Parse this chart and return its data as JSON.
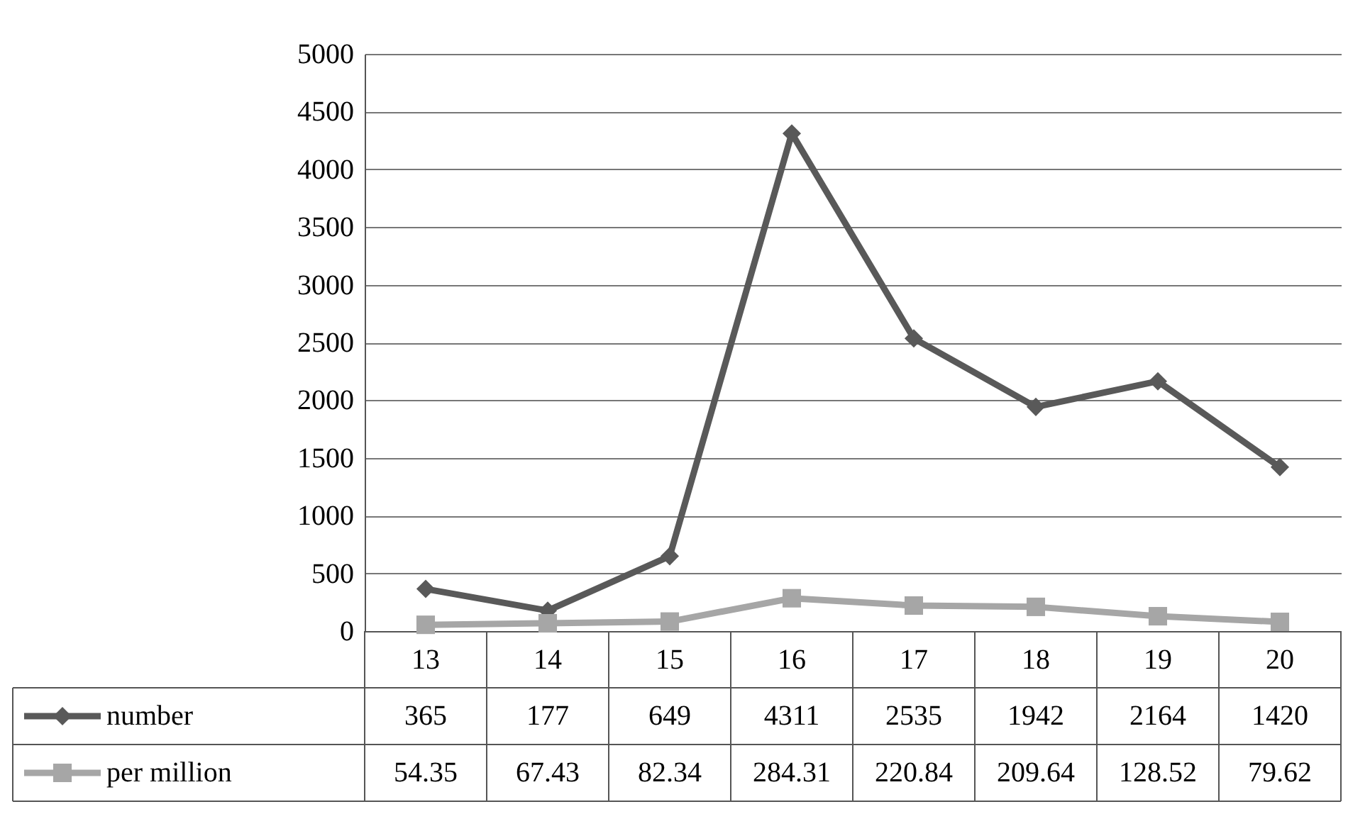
{
  "chart_data": {
    "type": "line",
    "categories": [
      "13",
      "14",
      "15",
      "16",
      "17",
      "18",
      "19",
      "20"
    ],
    "series": [
      {
        "name": "number",
        "color": "#595959",
        "marker": "diamond",
        "values": [
          365,
          177,
          649,
          4311,
          2535,
          1942,
          2164,
          1420
        ]
      },
      {
        "name": "per million",
        "color": "#a6a6a6",
        "marker": "square",
        "values": [
          54.35,
          67.43,
          82.34,
          284.31,
          220.84,
          209.64,
          128.52,
          79.62
        ]
      }
    ],
    "ylim": [
      0,
      5000
    ],
    "yticks": [
      0,
      500,
      1000,
      1500,
      2000,
      2500,
      3000,
      3500,
      4000,
      4500,
      5000
    ],
    "grid": "y",
    "data_labels": true,
    "legend": "bottom",
    "line_style": "solid"
  }
}
